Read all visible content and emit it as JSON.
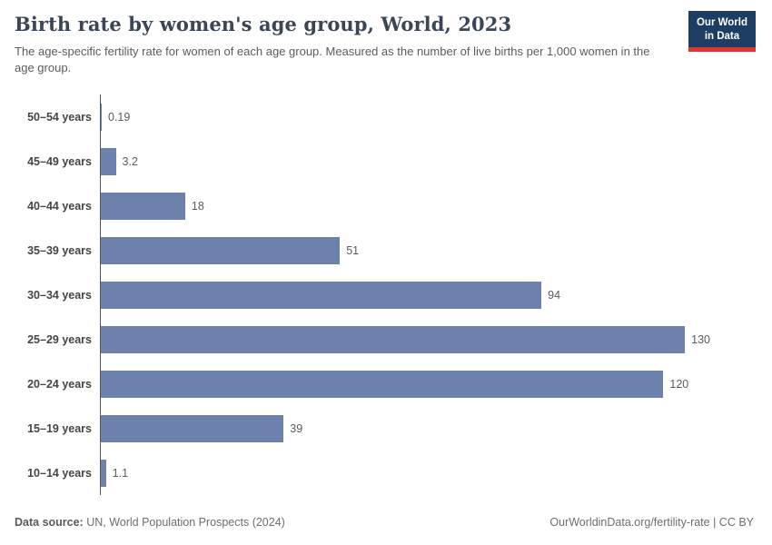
{
  "header": {
    "title": "Birth rate by women's age group, World, 2023",
    "subtitle": "The age-specific fertility rate for women of each age group. Measured as the number of live births per 1,000 women in the age group.",
    "logo": {
      "line1": "Our World",
      "line2": "in Data"
    }
  },
  "chart_data": {
    "type": "bar",
    "orientation": "horizontal",
    "title": "Birth rate by women's age group, World, 2023",
    "categories": [
      "50–54 years",
      "45–49 years",
      "40–44 years",
      "35–39 years",
      "30–34 years",
      "25–29 years",
      "20–24 years",
      "15–19 years",
      "10–14 years"
    ],
    "values": [
      0.19,
      3.2,
      18,
      51,
      94,
      130,
      120,
      39,
      1.1
    ],
    "value_labels": [
      "0.19",
      "3.2",
      "18",
      "51",
      "94",
      "130",
      "120",
      "39",
      "1.1"
    ],
    "xlabel": "",
    "ylabel": "",
    "xlim": [
      0,
      130
    ],
    "bar_color": "#6c81ab",
    "grid": false,
    "legend": "none"
  },
  "footer": {
    "source_label": "Data source:",
    "source_text": " UN, World Population Prospects (2024)",
    "right_text": "OurWorldinData.org/fertility-rate | CC BY"
  },
  "colors": {
    "bar": "#6c81ab",
    "logo_bg": "#1d3d63",
    "logo_accent": "#e0362c",
    "axis_line": "#565656"
  }
}
